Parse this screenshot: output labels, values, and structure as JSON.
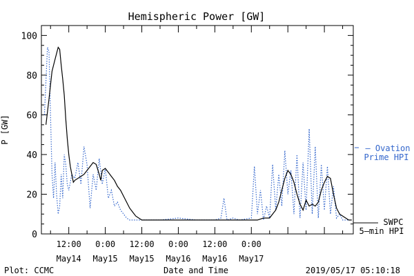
{
  "chart_data": {
    "type": "line",
    "title": "Hemispheric Power [GW]",
    "xlabel": "Date and Time",
    "ylabel": "P [GW]",
    "ylim": [
      0,
      105
    ],
    "xlim_hours_note_free": null,
    "yticks": [
      "0",
      "20",
      "40",
      "60",
      "80",
      "100"
    ],
    "xticks": [
      {
        "time": "12:00",
        "date": "May14"
      },
      {
        "time": "0:00",
        "date": "May15"
      },
      {
        "time": "12:00",
        "date": "May15"
      },
      {
        "time": "0:00",
        "date": "May16"
      },
      {
        "time": "12:00",
        "date": "May16"
      },
      {
        "time": "0:00",
        "date": "May17"
      }
    ],
    "grid": false,
    "series": [
      {
        "name": "SWPC 5-min HPI",
        "label_lines": [
          "SWPC",
          "5—min HPI"
        ],
        "color": "#000000",
        "style": "solid",
        "points": [
          [
            "2019-05-13 04:30",
            55
          ],
          [
            "2019-05-13 05:30",
            68
          ],
          [
            "2019-05-13 06:30",
            82
          ],
          [
            "2019-05-13 07:30",
            88
          ],
          [
            "2019-05-13 08:30",
            94
          ],
          [
            "2019-05-13 09:00",
            93
          ],
          [
            "2019-05-13 09:30",
            85
          ],
          [
            "2019-05-13 10:00",
            78
          ],
          [
            "2019-05-13 10:30",
            70
          ],
          [
            "2019-05-13 11:00",
            58
          ],
          [
            "2019-05-13 11:30",
            48
          ],
          [
            "2019-05-13 12:00",
            40
          ],
          [
            "2019-05-13 12:30",
            34
          ],
          [
            "2019-05-13 13:00",
            30
          ],
          [
            "2019-05-13 13:30",
            26
          ],
          [
            "2019-05-13 14:00",
            27
          ],
          [
            "2019-05-13 15:00",
            28
          ],
          [
            "2019-05-13 16:00",
            29
          ],
          [
            "2019-05-13 17:00",
            30
          ],
          [
            "2019-05-13 18:00",
            32
          ],
          [
            "2019-05-13 19:00",
            34
          ],
          [
            "2019-05-13 20:00",
            36
          ],
          [
            "2019-05-13 21:00",
            35
          ],
          [
            "2019-05-13 22:00",
            30
          ],
          [
            "2019-05-13 22:30",
            27
          ],
          [
            "2019-05-13 23:00",
            32
          ],
          [
            "2019-05-14 00:00",
            33
          ],
          [
            "2019-05-14 01:00",
            31
          ],
          [
            "2019-05-14 02:00",
            29
          ],
          [
            "2019-05-14 03:00",
            27
          ],
          [
            "2019-05-14 04:00",
            24
          ],
          [
            "2019-05-14 05:00",
            22
          ],
          [
            "2019-05-14 06:00",
            19
          ],
          [
            "2019-05-14 07:00",
            16
          ],
          [
            "2019-05-14 08:00",
            13
          ],
          [
            "2019-05-14 09:00",
            11
          ],
          [
            "2019-05-14 10:00",
            9
          ],
          [
            "2019-05-14 11:00",
            8
          ],
          [
            "2019-05-14 12:00",
            7
          ],
          [
            "2019-05-15 00:00",
            7
          ],
          [
            "2019-05-15 12:00",
            7
          ],
          [
            "2019-05-15 18:00",
            7
          ],
          [
            "2019-05-15 23:00",
            7
          ],
          [
            "2019-05-16 00:00",
            7
          ],
          [
            "2019-05-16 02:00",
            7
          ],
          [
            "2019-05-16 04:00",
            8
          ],
          [
            "2019-05-16 05:00",
            8
          ],
          [
            "2019-05-16 06:00",
            8
          ],
          [
            "2019-05-16 07:00",
            10
          ],
          [
            "2019-05-16 08:00",
            12
          ],
          [
            "2019-05-16 09:00",
            16
          ],
          [
            "2019-05-16 10:00",
            22
          ],
          [
            "2019-05-16 11:00",
            28
          ],
          [
            "2019-05-16 12:00",
            32
          ],
          [
            "2019-05-16 13:00",
            30
          ],
          [
            "2019-05-16 14:00",
            26
          ],
          [
            "2019-05-16 15:00",
            20
          ],
          [
            "2019-05-16 16:00",
            15
          ],
          [
            "2019-05-16 17:00",
            12
          ],
          [
            "2019-05-16 18:00",
            17
          ],
          [
            "2019-05-16 19:00",
            14
          ],
          [
            "2019-05-16 20:00",
            15
          ],
          [
            "2019-05-16 21:00",
            14
          ],
          [
            "2019-05-16 22:00",
            16
          ],
          [
            "2019-05-16 23:00",
            22
          ],
          [
            "2019-05-17 00:00",
            26
          ],
          [
            "2019-05-17 01:00",
            29
          ],
          [
            "2019-05-17 02:00",
            28
          ],
          [
            "2019-05-17 03:00",
            20
          ],
          [
            "2019-05-17 04:00",
            13
          ],
          [
            "2019-05-17 05:00",
            10
          ],
          [
            "2019-05-17 06:00",
            9
          ],
          [
            "2019-05-17 07:00",
            8
          ],
          [
            "2019-05-17 08:00",
            7
          ],
          [
            "2019-05-17 09:00",
            7
          ]
        ]
      },
      {
        "name": "Ovation Prime HPI",
        "label_lines": [
          "— Ovation",
          "Prime HPI"
        ],
        "color": "#3366cc",
        "style": "dotted",
        "points": [
          [
            "2019-05-13 04:00",
            60
          ],
          [
            "2019-05-13 05:00",
            94
          ],
          [
            "2019-05-13 05:30",
            92
          ],
          [
            "2019-05-13 06:00",
            60
          ],
          [
            "2019-05-13 06:30",
            30
          ],
          [
            "2019-05-13 07:00",
            18
          ],
          [
            "2019-05-13 07:30",
            36
          ],
          [
            "2019-05-13 08:00",
            20
          ],
          [
            "2019-05-13 08:30",
            10
          ],
          [
            "2019-05-13 09:00",
            14
          ],
          [
            "2019-05-13 09:30",
            30
          ],
          [
            "2019-05-13 10:00",
            18
          ],
          [
            "2019-05-13 10:30",
            40
          ],
          [
            "2019-05-13 11:00",
            35
          ],
          [
            "2019-05-13 11:30",
            25
          ],
          [
            "2019-05-13 12:00",
            22
          ],
          [
            "2019-05-13 13:00",
            30
          ],
          [
            "2019-05-13 14:00",
            28
          ],
          [
            "2019-05-13 15:00",
            36
          ],
          [
            "2019-05-13 16:00",
            25
          ],
          [
            "2019-05-13 17:00",
            44
          ],
          [
            "2019-05-13 18:00",
            35
          ],
          [
            "2019-05-13 19:00",
            13
          ],
          [
            "2019-05-13 20:00",
            30
          ],
          [
            "2019-05-13 21:00",
            22
          ],
          [
            "2019-05-13 22:00",
            38
          ],
          [
            "2019-05-13 23:00",
            25
          ],
          [
            "2019-05-14 00:00",
            33
          ],
          [
            "2019-05-14 01:00",
            18
          ],
          [
            "2019-05-14 02:00",
            22
          ],
          [
            "2019-05-14 03:00",
            14
          ],
          [
            "2019-05-14 04:00",
            16
          ],
          [
            "2019-05-14 05:00",
            12
          ],
          [
            "2019-05-14 06:00",
            10
          ],
          [
            "2019-05-14 07:00",
            8
          ],
          [
            "2019-05-14 08:00",
            7
          ],
          [
            "2019-05-14 12:00",
            7
          ],
          [
            "2019-05-14 18:00",
            7
          ],
          [
            "2019-05-15 00:00",
            8
          ],
          [
            "2019-05-15 06:00",
            7
          ],
          [
            "2019-05-15 12:00",
            7
          ],
          [
            "2019-05-15 14:00",
            8
          ],
          [
            "2019-05-15 15:00",
            18
          ],
          [
            "2019-05-15 16:00",
            7
          ],
          [
            "2019-05-15 18:00",
            8
          ],
          [
            "2019-05-15 20:00",
            7
          ],
          [
            "2019-05-16 00:00",
            8
          ],
          [
            "2019-05-16 01:00",
            34
          ],
          [
            "2019-05-16 02:00",
            10
          ],
          [
            "2019-05-16 03:00",
            22
          ],
          [
            "2019-05-16 04:00",
            7
          ],
          [
            "2019-05-16 05:00",
            14
          ],
          [
            "2019-05-16 06:00",
            8
          ],
          [
            "2019-05-16 07:00",
            35
          ],
          [
            "2019-05-16 08:00",
            12
          ],
          [
            "2019-05-16 09:00",
            30
          ],
          [
            "2019-05-16 10:00",
            14
          ],
          [
            "2019-05-16 11:00",
            42
          ],
          [
            "2019-05-16 12:00",
            20
          ],
          [
            "2019-05-16 13:00",
            32
          ],
          [
            "2019-05-16 14:00",
            10
          ],
          [
            "2019-05-16 15:00",
            40
          ],
          [
            "2019-05-16 16:00",
            8
          ],
          [
            "2019-05-16 17:00",
            36
          ],
          [
            "2019-05-16 18:00",
            12
          ],
          [
            "2019-05-16 19:00",
            53
          ],
          [
            "2019-05-16 20:00",
            10
          ],
          [
            "2019-05-16 21:00",
            44
          ],
          [
            "2019-05-16 22:00",
            8
          ],
          [
            "2019-05-16 23:00",
            35
          ],
          [
            "2019-05-17 00:00",
            12
          ],
          [
            "2019-05-17 01:00",
            34
          ],
          [
            "2019-05-17 02:00",
            10
          ],
          [
            "2019-05-17 03:00",
            24
          ],
          [
            "2019-05-17 04:00",
            8
          ],
          [
            "2019-05-17 05:00",
            10
          ],
          [
            "2019-05-17 06:00",
            7
          ],
          [
            "2019-05-17 08:00",
            7
          ]
        ]
      }
    ]
  },
  "footer": {
    "left": "Plot: CCMC",
    "center": "Date and Time",
    "right": "2019/05/17 05:10:18"
  },
  "colors": {
    "axis": "#000000",
    "ovation": "#3366cc",
    "swpc": "#000000"
  }
}
